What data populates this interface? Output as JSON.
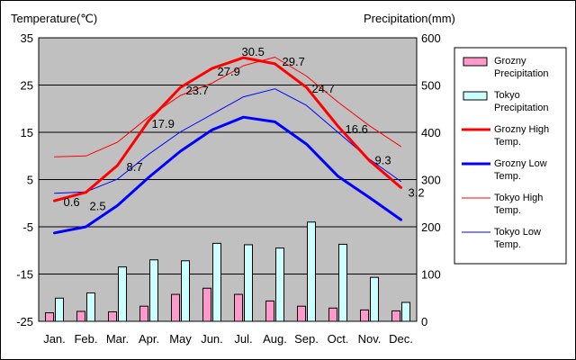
{
  "chart_data": {
    "type": "bar+line",
    "y_left_label": "Temperature(℃)",
    "y_right_label": "Precipitation(mm)",
    "y_left_range": [
      -25,
      35
    ],
    "y_right_range": [
      0,
      600
    ],
    "y_left_ticks": [
      "35",
      "25",
      "15",
      "5",
      "-5",
      "-15",
      "-25"
    ],
    "y_right_ticks": [
      "600",
      "500",
      "400",
      "300",
      "200",
      "100",
      "0"
    ],
    "grid": true,
    "legend_position": "right",
    "categories": [
      "Jan.",
      "Feb.",
      "Mar.",
      "Apr.",
      "May",
      "Jun.",
      "Jul.",
      "Aug.",
      "Sep.",
      "Oct.",
      "Nov.",
      "Dec."
    ],
    "series": [
      {
        "name": "Grozny Precipitation",
        "kind": "bar",
        "axis": "right",
        "color": "#ff99cc",
        "values": [
          18,
          21,
          20,
          32,
          57,
          70,
          57,
          43,
          32,
          28,
          24,
          22
        ]
      },
      {
        "name": "Tokyo Precipitation",
        "kind": "bar",
        "axis": "right",
        "color": "#ccffff",
        "values": [
          49,
          60,
          115,
          130,
          128,
          165,
          162,
          155,
          210,
          163,
          93,
          40
        ]
      },
      {
        "name": "Grozny High Temp.",
        "kind": "line",
        "axis": "left",
        "color": "#ff0000",
        "width": 3,
        "values": [
          0.5,
          2.3,
          8.0,
          17.5,
          24.5,
          28.5,
          30.8,
          29.5,
          24.5,
          16.3,
          9.0,
          3.3
        ]
      },
      {
        "name": "Grozny Low Temp.",
        "kind": "line",
        "axis": "left",
        "color": "#0000ff",
        "width": 3,
        "values": [
          -6.3,
          -5.0,
          -0.5,
          5.5,
          11.0,
          15.5,
          18.2,
          17.2,
          12.5,
          5.7,
          1.2,
          -3.5
        ]
      },
      {
        "name": "Tokyo High Temp.",
        "kind": "line",
        "axis": "left",
        "color": "#ff0000",
        "width": 1,
        "values": [
          9.8,
          10.0,
          12.9,
          18.3,
          22.8,
          25.4,
          29.1,
          30.9,
          26.9,
          21.4,
          16.4,
          12.0
        ]
      },
      {
        "name": "Tokyo Low Temp.",
        "kind": "line",
        "axis": "left",
        "color": "#0000ff",
        "width": 1,
        "values": [
          2.1,
          2.4,
          5.1,
          10.4,
          15.1,
          18.8,
          22.5,
          24.2,
          20.7,
          15.0,
          9.3,
          4.6
        ]
      }
    ],
    "annotations": [
      {
        "month": "Jan.",
        "text": "0.6"
      },
      {
        "month": "Feb.",
        "text": "2.5"
      },
      {
        "month": "Mar.",
        "text": "8.7"
      },
      {
        "month": "Apr.",
        "text": "17.9"
      },
      {
        "month": "May",
        "text": "23.7"
      },
      {
        "month": "Jun.",
        "text": "27.9"
      },
      {
        "month": "Jul.",
        "text": "30.5"
      },
      {
        "month": "Aug.",
        "text": "29.7"
      },
      {
        "month": "Sep.",
        "text": "24.7"
      },
      {
        "month": "Oct.",
        "text": "16.6"
      },
      {
        "month": "Nov.",
        "text": "9.3"
      },
      {
        "month": "Dec.",
        "text": "3.2"
      }
    ],
    "legend": [
      {
        "label_lines": [
          "Grozny",
          "Precipitation"
        ],
        "symbol": "box",
        "color": "#ff99cc"
      },
      {
        "label_lines": [
          "Tokyo",
          "Precipitation"
        ],
        "symbol": "box",
        "color": "#ccffff"
      },
      {
        "label_lines": [
          "Grozny High",
          "Temp."
        ],
        "symbol": "line",
        "color": "#ff0000",
        "width": 3
      },
      {
        "label_lines": [
          "Grozny Low",
          "Temp."
        ],
        "symbol": "line",
        "color": "#0000ff",
        "width": 3
      },
      {
        "label_lines": [
          "Tokyo High",
          "Temp."
        ],
        "symbol": "line",
        "color": "#ff0000",
        "width": 1
      },
      {
        "label_lines": [
          "Tokyo Low",
          "Temp."
        ],
        "symbol": "line",
        "color": "#0000ff",
        "width": 1
      }
    ],
    "plot_background": "#c0c0c0"
  }
}
